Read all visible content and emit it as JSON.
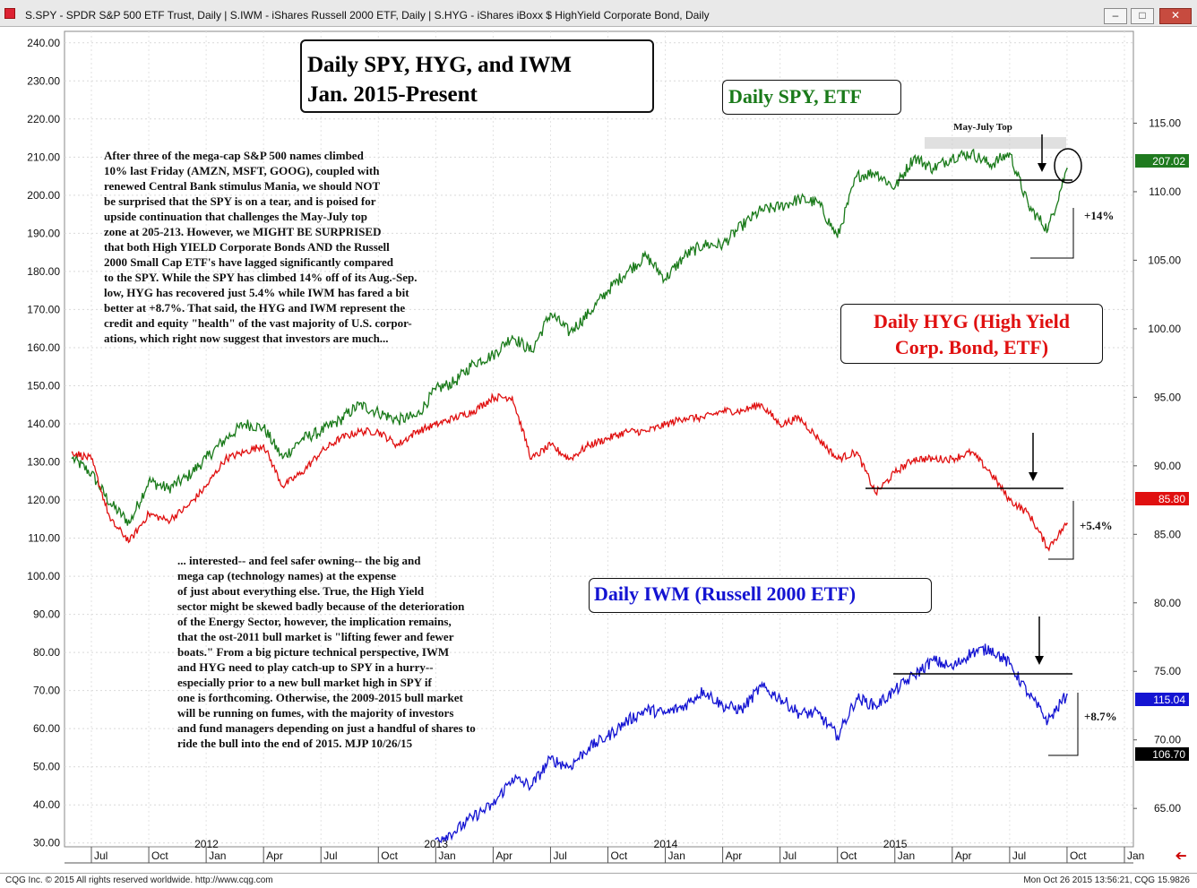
{
  "window": {
    "title": "S.SPY - SPDR S&P 500 ETF Trust, Daily  |  S.IWM - iShares Russell 2000 ETF, Daily  |  S.HYG - iShares iBoxx $ HighYield Corporate Bond, Daily",
    "minimize_label": "–",
    "restore_label": "□",
    "close_label": "✕",
    "scroll_arrow": "➔"
  },
  "footer": {
    "copyright": "CQG Inc. © 2015 All rights reserved worldwide. http://www.cqg.com",
    "timestamp": "Mon Oct 26 2015 13:56:21, CQG 15.9826"
  },
  "headline": {
    "line1": "Daily SPY, HYG, and IWM",
    "line2": "Jan. 2015-Present"
  },
  "labels": {
    "spy": "Daily SPY, ETF",
    "hyg_line1": "Daily HYG (High Yield",
    "hyg_line2": "Corp. Bond, ETF)",
    "iwm": "Daily IWM (Russell 2000 ETF)",
    "may_july_top": "May-July Top",
    "spy_gain": "+14%",
    "hyg_gain": "+5.4%",
    "iwm_gain": "+8.7%"
  },
  "notes": {
    "upper": [
      "After three of the mega-cap S&P 500 names climbed",
      "10% last Friday (AMZN, MSFT, GOOG), coupled with",
      "renewed Central Bank stimulus Mania, we should NOT",
      "be surprised that the SPY is on a tear, and is poised for",
      "upside continuation that challenges the May-July top",
      "zone at 205-213. However, we MIGHT BE SURPRISED",
      "that both High YIELD Corporate Bonds AND the Russell",
      "2000 Small Cap ETF's have lagged significantly compared",
      "to the SPY. While the SPY has climbed 14% off of its Aug.-Sep.",
      "low, HYG has recovered just 5.4% while IWM has fared a bit",
      "better at +8.7%. That said, the HYG and IWM represent the",
      "credit and equity \"health\" of the vast majority of U.S. corpor-",
      "ations, which right now suggest that investors are much..."
    ],
    "lower": [
      "... interested-- and feel safer owning-- the big and",
      "mega cap (technology names) at the expense",
      "of just about everything else. True, the High Yield",
      "sector might be skewed badly because of the deterioration",
      "of the Energy Sector, however, the implication remains,",
      "that the ost-2011 bull market is \"lifting fewer and fewer",
      "boats.\" From a big picture technical perspective, IWM",
      "and HYG need to play catch-up to SPY in a hurry--",
      "especially prior to a new bull market high in SPY if",
      "one is forthcoming. Otherwise, the 2009-2015 bull market",
      "will be running on fumes, with the majority of investors",
      "and fund managers depending on just a handful of shares to",
      "ride the bull into the end of 2015. MJP 10/26/15"
    ]
  },
  "badges": {
    "spy_last": "207.02",
    "hyg_last": "85.80",
    "iwm_last": "115.04",
    "iwm_low": "106.70"
  },
  "chart_data": {
    "type": "line",
    "left_axis": {
      "ticks": [
        "240.00",
        "230.00",
        "220.00",
        "210.00",
        "200.00",
        "190.00",
        "180.00",
        "170.00",
        "160.00",
        "150.00",
        "140.00",
        "130.00",
        "120.00",
        "110.00",
        "100.00",
        "90.00",
        "80.00",
        "70.00",
        "60.00",
        "50.00",
        "40.00",
        "30.00"
      ],
      "ylim": [
        29,
        243
      ]
    },
    "right_axis": {
      "ticks": [
        "115.00",
        "110.00",
        "105.00",
        "100.00",
        "95.00",
        "90.00",
        "85.00",
        "80.00",
        "75.00",
        "70.00",
        "65.00"
      ],
      "ylim": [
        62.2,
        121.7
      ]
    },
    "x_axis": {
      "month_ticks": [
        "Jul",
        "Oct",
        "Jan",
        "Apr",
        "Jul",
        "Oct",
        "Jan",
        "Apr",
        "Jul",
        "Oct",
        "Jan",
        "Apr",
        "Jul",
        "Oct",
        "Jan",
        "Apr",
        "Jul",
        "Oct",
        "Jan"
      ],
      "year_ticks": [
        "2012",
        "2013",
        "2014",
        "2015"
      ],
      "range": [
        "2011-07",
        "2016-01"
      ]
    },
    "series": [
      {
        "name": "Daily SPY, ETF",
        "color": "#1a7a1a",
        "axis": "left",
        "x": [
          "2011-06",
          "2011-07",
          "2011-08",
          "2011-09",
          "2011-10",
          "2011-11",
          "2011-12",
          "2012-01",
          "2012-02",
          "2012-03",
          "2012-04",
          "2012-05",
          "2012-06",
          "2012-07",
          "2012-08",
          "2012-09",
          "2012-10",
          "2012-11",
          "2012-12",
          "2013-01",
          "2013-02",
          "2013-03",
          "2013-04",
          "2013-05",
          "2013-06",
          "2013-07",
          "2013-08",
          "2013-09",
          "2013-10",
          "2013-11",
          "2013-12",
          "2014-01",
          "2014-02",
          "2014-03",
          "2014-04",
          "2014-05",
          "2014-06",
          "2014-07",
          "2014-08",
          "2014-09",
          "2014-10",
          "2014-11",
          "2014-12",
          "2015-01",
          "2015-02",
          "2015-03",
          "2015-04",
          "2015-05",
          "2015-06",
          "2015-07",
          "2015-08",
          "2015-09",
          "2015-10"
        ],
        "values": [
          131,
          127,
          119,
          114,
          125,
          123,
          126,
          131,
          136,
          140,
          139,
          131,
          136,
          138,
          141,
          145,
          143,
          141,
          142,
          149,
          151,
          156,
          158,
          163,
          159,
          169,
          164,
          169,
          175,
          180,
          184,
          178,
          184,
          187,
          187,
          192,
          196,
          197,
          199,
          198,
          189,
          205,
          206,
          202,
          210,
          207,
          210,
          211,
          208,
          211,
          197,
          191,
          207
        ]
      },
      {
        "name": "Daily HYG (High Yield Corp. Bond, ETF)",
        "color": "#e01010",
        "axis": "right",
        "x": [
          "2011-06",
          "2011-07",
          "2011-08",
          "2011-09",
          "2011-10",
          "2011-11",
          "2011-12",
          "2012-01",
          "2012-02",
          "2012-03",
          "2012-04",
          "2012-05",
          "2012-06",
          "2012-07",
          "2012-08",
          "2012-09",
          "2012-10",
          "2012-11",
          "2012-12",
          "2013-01",
          "2013-02",
          "2013-03",
          "2013-04",
          "2013-05",
          "2013-06",
          "2013-07",
          "2013-08",
          "2013-09",
          "2013-10",
          "2013-11",
          "2013-12",
          "2014-01",
          "2014-02",
          "2014-03",
          "2014-04",
          "2014-05",
          "2014-06",
          "2014-07",
          "2014-08",
          "2014-09",
          "2014-10",
          "2014-11",
          "2014-12",
          "2015-01",
          "2015-02",
          "2015-03",
          "2015-04",
          "2015-05",
          "2015-06",
          "2015-07",
          "2015-08",
          "2015-09",
          "2015-10"
        ],
        "values": [
          91,
          90.5,
          86,
          84.5,
          86.5,
          86,
          87,
          88.5,
          90.5,
          91,
          91.5,
          88.5,
          89.5,
          91,
          92,
          92.5,
          92.5,
          91.5,
          92.5,
          93,
          93.5,
          94,
          95,
          95,
          90.5,
          91.5,
          90.5,
          91.5,
          92,
          92.5,
          92.5,
          93,
          93.5,
          93.5,
          94,
          94,
          94.5,
          93,
          93.5,
          92,
          90.5,
          91,
          88,
          89.5,
          90.5,
          90.5,
          90.5,
          91,
          89.5,
          87.5,
          86.5,
          84,
          85.8
        ]
      },
      {
        "name": "Daily IWM (Russell 2000 ETF)",
        "color": "#1414d2",
        "axis": "left",
        "x": [
          "2013-01",
          "2013-02",
          "2013-03",
          "2013-04",
          "2013-05",
          "2013-06",
          "2013-07",
          "2013-08",
          "2013-09",
          "2013-10",
          "2013-11",
          "2013-12",
          "2014-01",
          "2014-02",
          "2014-03",
          "2014-04",
          "2014-05",
          "2014-06",
          "2014-07",
          "2014-08",
          "2014-09",
          "2014-10",
          "2014-11",
          "2014-12",
          "2015-01",
          "2015-02",
          "2015-03",
          "2015-04",
          "2015-05",
          "2015-06",
          "2015-07",
          "2015-08",
          "2015-09",
          "2015-10"
        ],
        "values": [
          31,
          33,
          37,
          40,
          47,
          45,
          52,
          50,
          55,
          58,
          62,
          65,
          64,
          66,
          70,
          66,
          65,
          71,
          68,
          64,
          64,
          58,
          68,
          66,
          70,
          74,
          78,
          76,
          80,
          81,
          77,
          69,
          62,
          69
        ]
      }
    ]
  }
}
